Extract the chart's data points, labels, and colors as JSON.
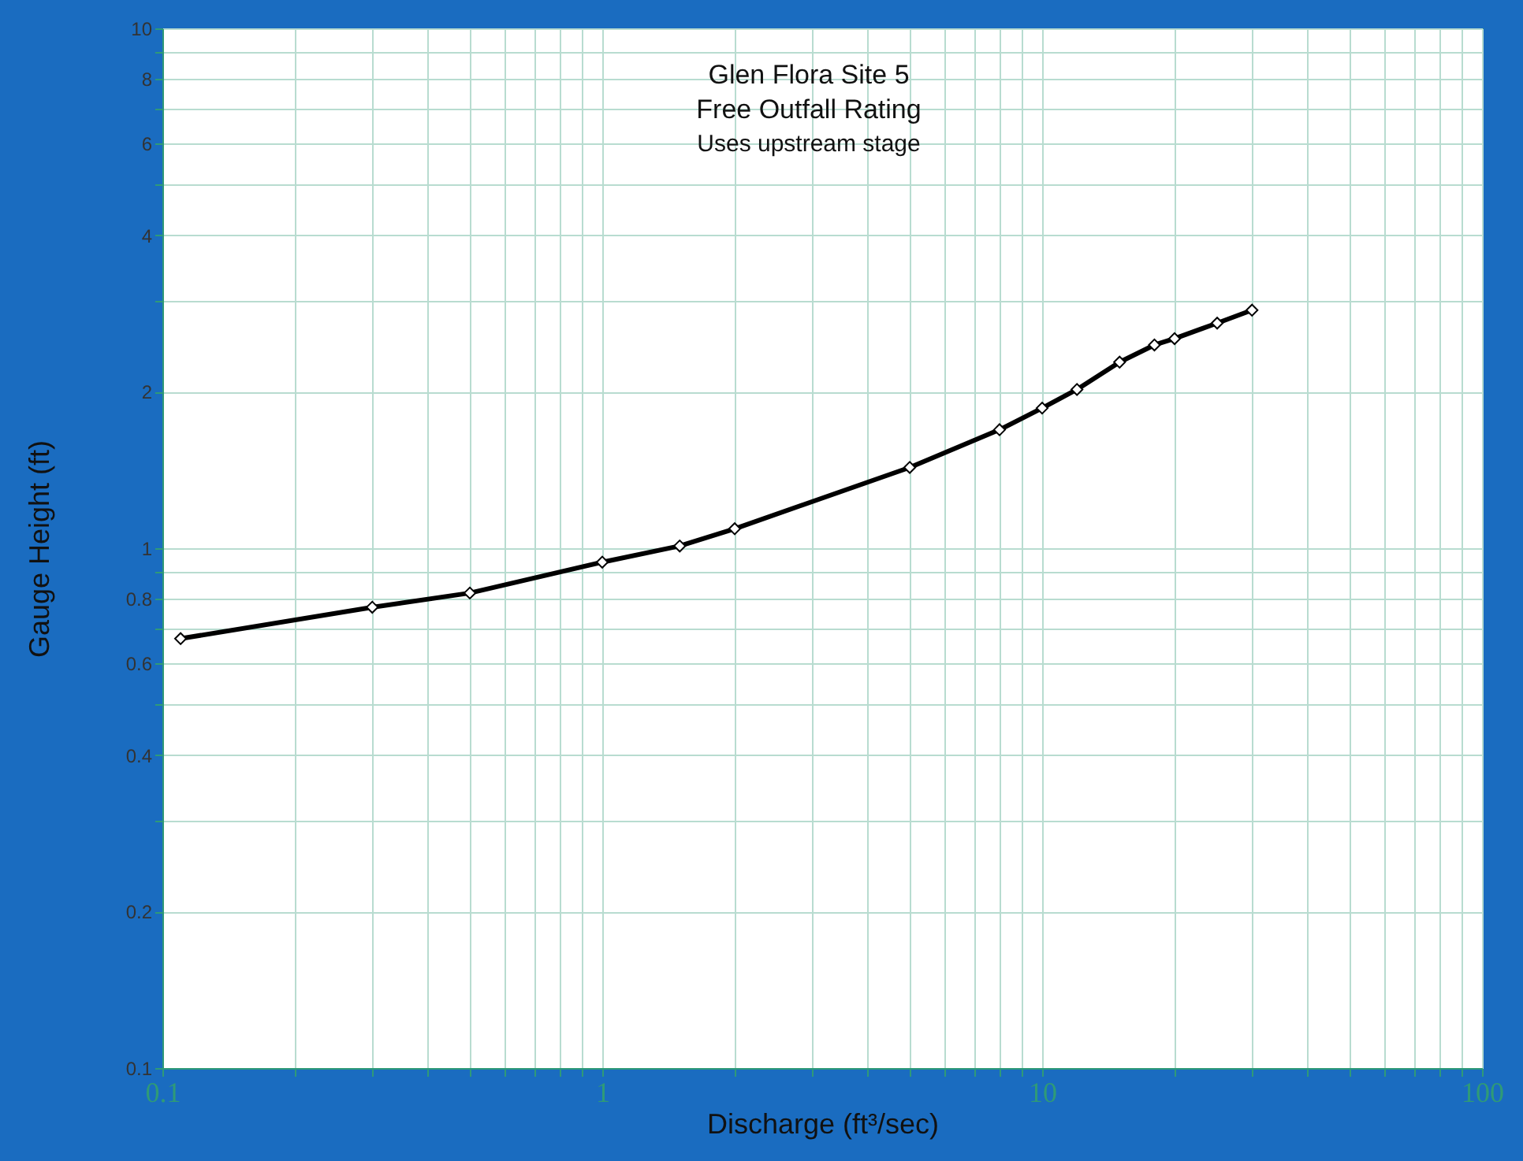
{
  "chart_data": {
    "type": "line",
    "title": "Glen Flora Site 5",
    "subtitle": "Free Outfall Rating",
    "annotations": [
      "Uses upstream stage"
    ],
    "xlabel": "Discharge (ft³/sec)",
    "ylabel": "Gauge Height (ft)",
    "log": "xy",
    "grid": true,
    "marker": "diamond",
    "line_style": "solid",
    "x": [
      0.11,
      0.3,
      0.5,
      1,
      1.5,
      2,
      5,
      8,
      10,
      12,
      15,
      18,
      20,
      25,
      30
    ],
    "series": [
      {
        "color": "#000000",
        "values": [
          0.67,
          0.77,
          0.82,
          0.94,
          1.01,
          1.09,
          1.43,
          1.69,
          1.86,
          2.02,
          2.28,
          2.46,
          2.53,
          2.71,
          2.87
        ]
      }
    ],
    "xlim": [
      0.1,
      100
    ],
    "ylim": [
      0.1,
      10
    ],
    "xticks": [
      0.1,
      {
        "value": 0.2,
        "label": null
      },
      {
        "value": 0.3,
        "label": null
      },
      {
        "value": 0.4,
        "label": null
      },
      {
        "value": 0.5,
        "label": null
      },
      {
        "value": 0.6,
        "label": null
      },
      {
        "value": 0.7,
        "label": null
      },
      {
        "value": 0.8,
        "label": null
      },
      {
        "value": 0.9,
        "label": null
      },
      1,
      {
        "value": 2,
        "label": null
      },
      {
        "value": 3,
        "label": null
      },
      {
        "value": 4,
        "label": null
      },
      {
        "value": 5,
        "label": null
      },
      {
        "value": 6,
        "label": null
      },
      {
        "value": 7,
        "label": null
      },
      {
        "value": 8,
        "label": null
      },
      {
        "value": 9,
        "label": null
      },
      10,
      {
        "value": 20,
        "label": null
      },
      {
        "value": 30,
        "label": null
      },
      {
        "value": 40,
        "label": null
      },
      {
        "value": 50,
        "label": null
      },
      {
        "value": 60,
        "label": null
      },
      {
        "value": 70,
        "label": null
      },
      {
        "value": 80,
        "label": null
      },
      {
        "value": 90,
        "label": null
      },
      100
    ],
    "yticks": [
      0.1,
      0.2,
      {
        "value": 0.3,
        "label": null
      },
      0.4,
      {
        "value": 0.5,
        "label": null
      },
      0.6,
      {
        "value": 0.7,
        "label": null
      },
      0.8,
      {
        "value": 0.9,
        "label": null
      },
      1,
      2,
      {
        "value": 3,
        "label": null
      },
      4,
      {
        "value": 5,
        "label": null
      },
      6,
      {
        "value": 7,
        "label": null
      },
      8,
      {
        "value": 9,
        "label": null
      },
      10
    ]
  }
}
